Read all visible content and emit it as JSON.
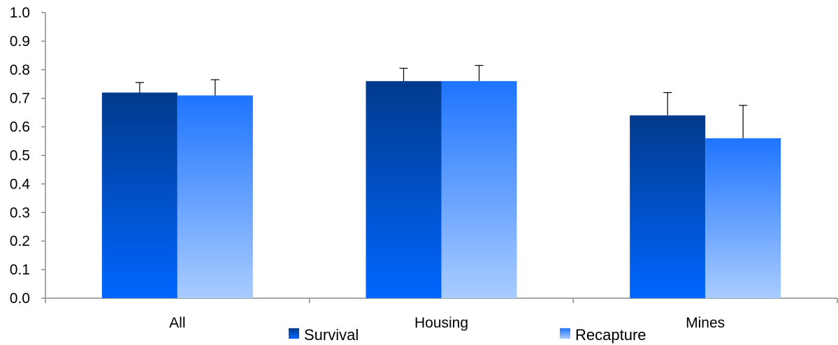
{
  "chart_data": {
    "type": "bar",
    "categories": [
      "All",
      "Housing",
      "Mines"
    ],
    "series": [
      {
        "name": "Survival",
        "values": [
          0.72,
          0.76,
          0.64
        ],
        "errors": [
          0.035,
          0.045,
          0.08
        ]
      },
      {
        "name": "Recapture",
        "values": [
          0.71,
          0.76,
          0.56
        ],
        "errors": [
          0.055,
          0.055,
          0.115
        ]
      }
    ],
    "ylim": [
      0,
      1.0
    ],
    "yticks": [
      "0.0",
      "0.1",
      "0.2",
      "0.3",
      "0.4",
      "0.5",
      "0.6",
      "0.7",
      "0.8",
      "0.9",
      "1.0"
    ],
    "legend_position": "bottom",
    "grid": false,
    "colors": {
      "survival_top": "#003a8c",
      "survival_bottom": "#0066ff",
      "recapture_top": "#1e74ff",
      "recapture_bottom": "#a9ccff",
      "axis": "#8c8c8c"
    }
  }
}
